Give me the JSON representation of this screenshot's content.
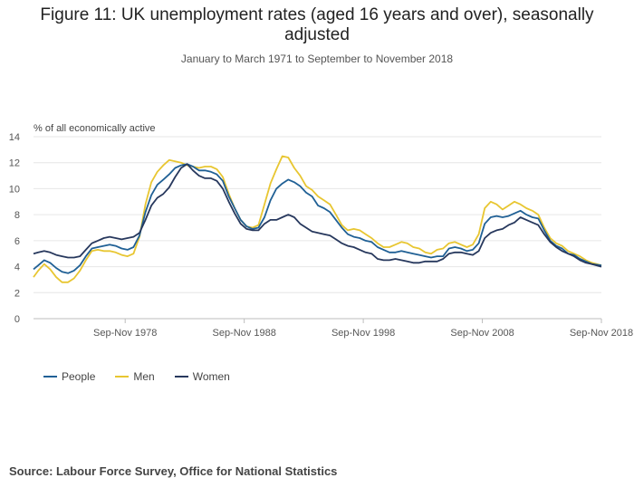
{
  "chart_data": {
    "type": "line",
    "title": "Figure 11: UK unemployment rates (aged 16 years and over), seasonally adjusted",
    "subtitle": "January to March 1971 to September to November 2018",
    "ylabel": "% of all economically active",
    "xlabel": "",
    "ylim": [
      0,
      14
    ],
    "yticks": [
      0,
      2,
      4,
      6,
      8,
      10,
      12,
      14
    ],
    "xlim": [
      1971.1,
      2018.8
    ],
    "xticks": [
      {
        "value": 1978.8,
        "label": "Sep-Nov 1978"
      },
      {
        "value": 1988.8,
        "label": "Sep-Nov 1988"
      },
      {
        "value": 1998.8,
        "label": "Sep-Nov 1998"
      },
      {
        "value": 2008.8,
        "label": "Sep-Nov 2008"
      },
      {
        "value": 2018.8,
        "label": "Sep-Nov 2018"
      }
    ],
    "grid": true,
    "legend_position": "bottom-left",
    "x": [
      1971.1,
      1971.5,
      1972.0,
      1972.5,
      1973.0,
      1973.5,
      1974.0,
      1974.5,
      1975.0,
      1975.5,
      1976.0,
      1976.5,
      1977.0,
      1977.5,
      1978.0,
      1978.5,
      1979.0,
      1979.5,
      1980.0,
      1980.5,
      1981.0,
      1981.5,
      1982.0,
      1982.5,
      1983.0,
      1983.5,
      1984.0,
      1984.5,
      1985.0,
      1985.5,
      1986.0,
      1986.5,
      1987.0,
      1987.5,
      1988.0,
      1988.5,
      1989.0,
      1989.5,
      1990.0,
      1990.5,
      1991.0,
      1991.5,
      1992.0,
      1992.5,
      1993.0,
      1993.5,
      1994.0,
      1994.5,
      1995.0,
      1995.5,
      1996.0,
      1996.5,
      1997.0,
      1997.5,
      1998.0,
      1998.5,
      1999.0,
      1999.5,
      2000.0,
      2000.5,
      2001.0,
      2001.5,
      2002.0,
      2002.5,
      2003.0,
      2003.5,
      2004.0,
      2004.5,
      2005.0,
      2005.5,
      2006.0,
      2006.5,
      2007.0,
      2007.5,
      2008.0,
      2008.5,
      2009.0,
      2009.5,
      2010.0,
      2010.5,
      2011.0,
      2011.5,
      2012.0,
      2012.5,
      2013.0,
      2013.5,
      2014.0,
      2014.5,
      2015.0,
      2015.5,
      2016.0,
      2016.5,
      2017.0,
      2017.5,
      2018.0,
      2018.8
    ],
    "series": [
      {
        "name": "People",
        "color": "#206095",
        "values": [
          3.8,
          4.1,
          4.5,
          4.3,
          3.9,
          3.6,
          3.5,
          3.7,
          4.1,
          4.8,
          5.4,
          5.5,
          5.6,
          5.7,
          5.6,
          5.4,
          5.3,
          5.5,
          6.4,
          8.2,
          9.5,
          10.3,
          10.7,
          11.1,
          11.6,
          11.8,
          11.9,
          11.7,
          11.4,
          11.4,
          11.3,
          11.1,
          10.6,
          9.4,
          8.5,
          7.6,
          7.1,
          6.9,
          7.0,
          7.8,
          9.1,
          10.0,
          10.4,
          10.7,
          10.5,
          10.2,
          9.7,
          9.4,
          8.7,
          8.5,
          8.2,
          7.6,
          7.0,
          6.5,
          6.3,
          6.2,
          6.0,
          5.9,
          5.5,
          5.3,
          5.1,
          5.1,
          5.2,
          5.1,
          5.0,
          4.9,
          4.8,
          4.7,
          4.8,
          4.8,
          5.4,
          5.5,
          5.4,
          5.2,
          5.3,
          5.8,
          7.3,
          7.8,
          7.9,
          7.8,
          7.9,
          8.1,
          8.3,
          8.0,
          7.8,
          7.7,
          6.8,
          6.0,
          5.6,
          5.4,
          5.0,
          4.9,
          4.6,
          4.4,
          4.2,
          4.1
        ]
      },
      {
        "name": "Men",
        "color": "#e8c631",
        "values": [
          3.2,
          3.7,
          4.2,
          3.8,
          3.2,
          2.8,
          2.8,
          3.1,
          3.7,
          4.5,
          5.2,
          5.3,
          5.2,
          5.2,
          5.1,
          4.9,
          4.8,
          5.0,
          6.3,
          8.8,
          10.5,
          11.3,
          11.8,
          12.2,
          12.1,
          12.0,
          11.8,
          11.7,
          11.6,
          11.7,
          11.7,
          11.5,
          10.9,
          9.6,
          8.5,
          7.6,
          7.1,
          7.0,
          7.2,
          8.8,
          10.4,
          11.5,
          12.5,
          12.4,
          11.6,
          11.0,
          10.2,
          9.9,
          9.4,
          9.1,
          8.8,
          8.0,
          7.2,
          6.8,
          6.9,
          6.8,
          6.5,
          6.2,
          5.8,
          5.5,
          5.5,
          5.7,
          5.9,
          5.8,
          5.5,
          5.4,
          5.1,
          5.0,
          5.3,
          5.4,
          5.8,
          5.9,
          5.7,
          5.5,
          5.7,
          6.5,
          8.5,
          9.0,
          8.8,
          8.4,
          8.7,
          9.0,
          8.8,
          8.5,
          8.3,
          8.0,
          7.0,
          6.2,
          5.8,
          5.6,
          5.2,
          5.0,
          4.8,
          4.5,
          4.3,
          4.1
        ]
      },
      {
        "name": "Women",
        "color": "#27385d",
        "values": [
          5.0,
          5.1,
          5.2,
          5.1,
          4.9,
          4.8,
          4.7,
          4.7,
          4.8,
          5.3,
          5.8,
          6.0,
          6.2,
          6.3,
          6.2,
          6.1,
          6.2,
          6.3,
          6.6,
          7.6,
          8.7,
          9.3,
          9.6,
          10.1,
          10.9,
          11.6,
          11.9,
          11.4,
          11.0,
          10.8,
          10.8,
          10.6,
          10.0,
          9.0,
          8.1,
          7.3,
          6.9,
          6.8,
          6.8,
          7.3,
          7.6,
          7.6,
          7.8,
          8.0,
          7.8,
          7.3,
          7.0,
          6.7,
          6.6,
          6.5,
          6.4,
          6.1,
          5.8,
          5.6,
          5.5,
          5.3,
          5.1,
          5.0,
          4.6,
          4.5,
          4.5,
          4.6,
          4.5,
          4.4,
          4.3,
          4.3,
          4.4,
          4.4,
          4.4,
          4.6,
          5.0,
          5.1,
          5.1,
          5.0,
          4.9,
          5.2,
          6.2,
          6.6,
          6.8,
          6.9,
          7.2,
          7.4,
          7.8,
          7.6,
          7.4,
          7.2,
          6.5,
          5.9,
          5.5,
          5.2,
          5.0,
          4.8,
          4.5,
          4.3,
          4.2,
          4.0
        ]
      }
    ]
  },
  "source": "Source: Labour Force Survey, Office for National Statistics"
}
